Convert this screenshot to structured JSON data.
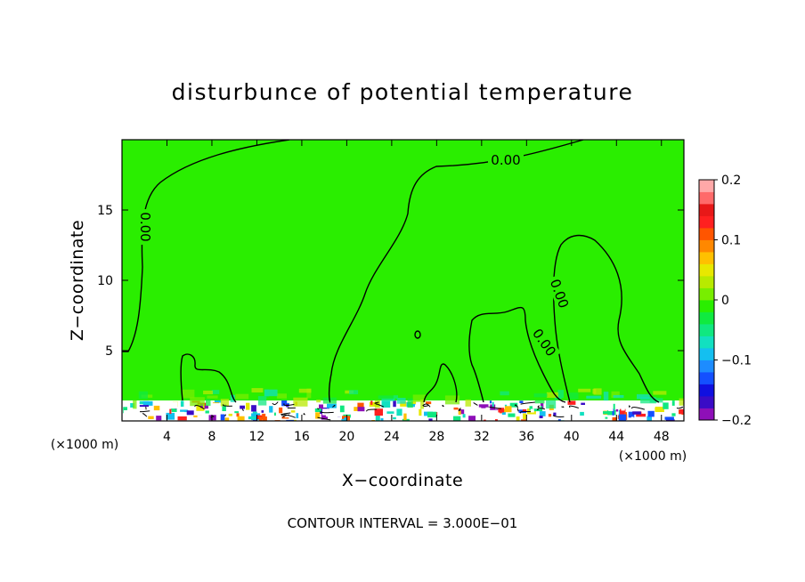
{
  "chart_data": {
    "type": "heatmap",
    "title": "disturbunce of potential temperature",
    "xlabel": "X−coordinate",
    "ylabel": "Z−coordinate",
    "x_unit_left": "(×1000 m)",
    "x_unit_right": "(×1000 m)",
    "xlim": [
      0,
      50
    ],
    "ylim": [
      0,
      20
    ],
    "x_ticks": [
      4,
      8,
      12,
      16,
      20,
      24,
      28,
      32,
      36,
      40,
      44,
      48
    ],
    "y_ticks": [
      5,
      10,
      15
    ],
    "colorbar": {
      "range": [
        -0.2,
        0.2
      ],
      "ticks": [
        {
          "value": 0.2,
          "label": "0.2"
        },
        {
          "value": 0.1,
          "label": "0.1"
        },
        {
          "value": 0.0,
          "label": "0"
        },
        {
          "value": -0.1,
          "label": "−0.1"
        },
        {
          "value": -0.2,
          "label": "−0.2"
        }
      ],
      "colors": [
        "#8e0fb8",
        "#3a0cc6",
        "#1010e0",
        "#1450ff",
        "#1d8cff",
        "#14bff0",
        "#12e0c0",
        "#10e880",
        "#10ea40",
        "#2aee00",
        "#78ee00",
        "#b8ea00",
        "#e8e800",
        "#ffc000",
        "#ff8800",
        "#ff5500",
        "#ff2020",
        "#e81818",
        "#ff6a6a",
        "#ffa8a8"
      ]
    },
    "contour_interval_text": "CONTOUR INTERVAL = 3.000E−01",
    "contour_labels": [
      "0.00",
      "0.00",
      "0.00",
      "0.00"
    ],
    "background_value": 0.0
  }
}
